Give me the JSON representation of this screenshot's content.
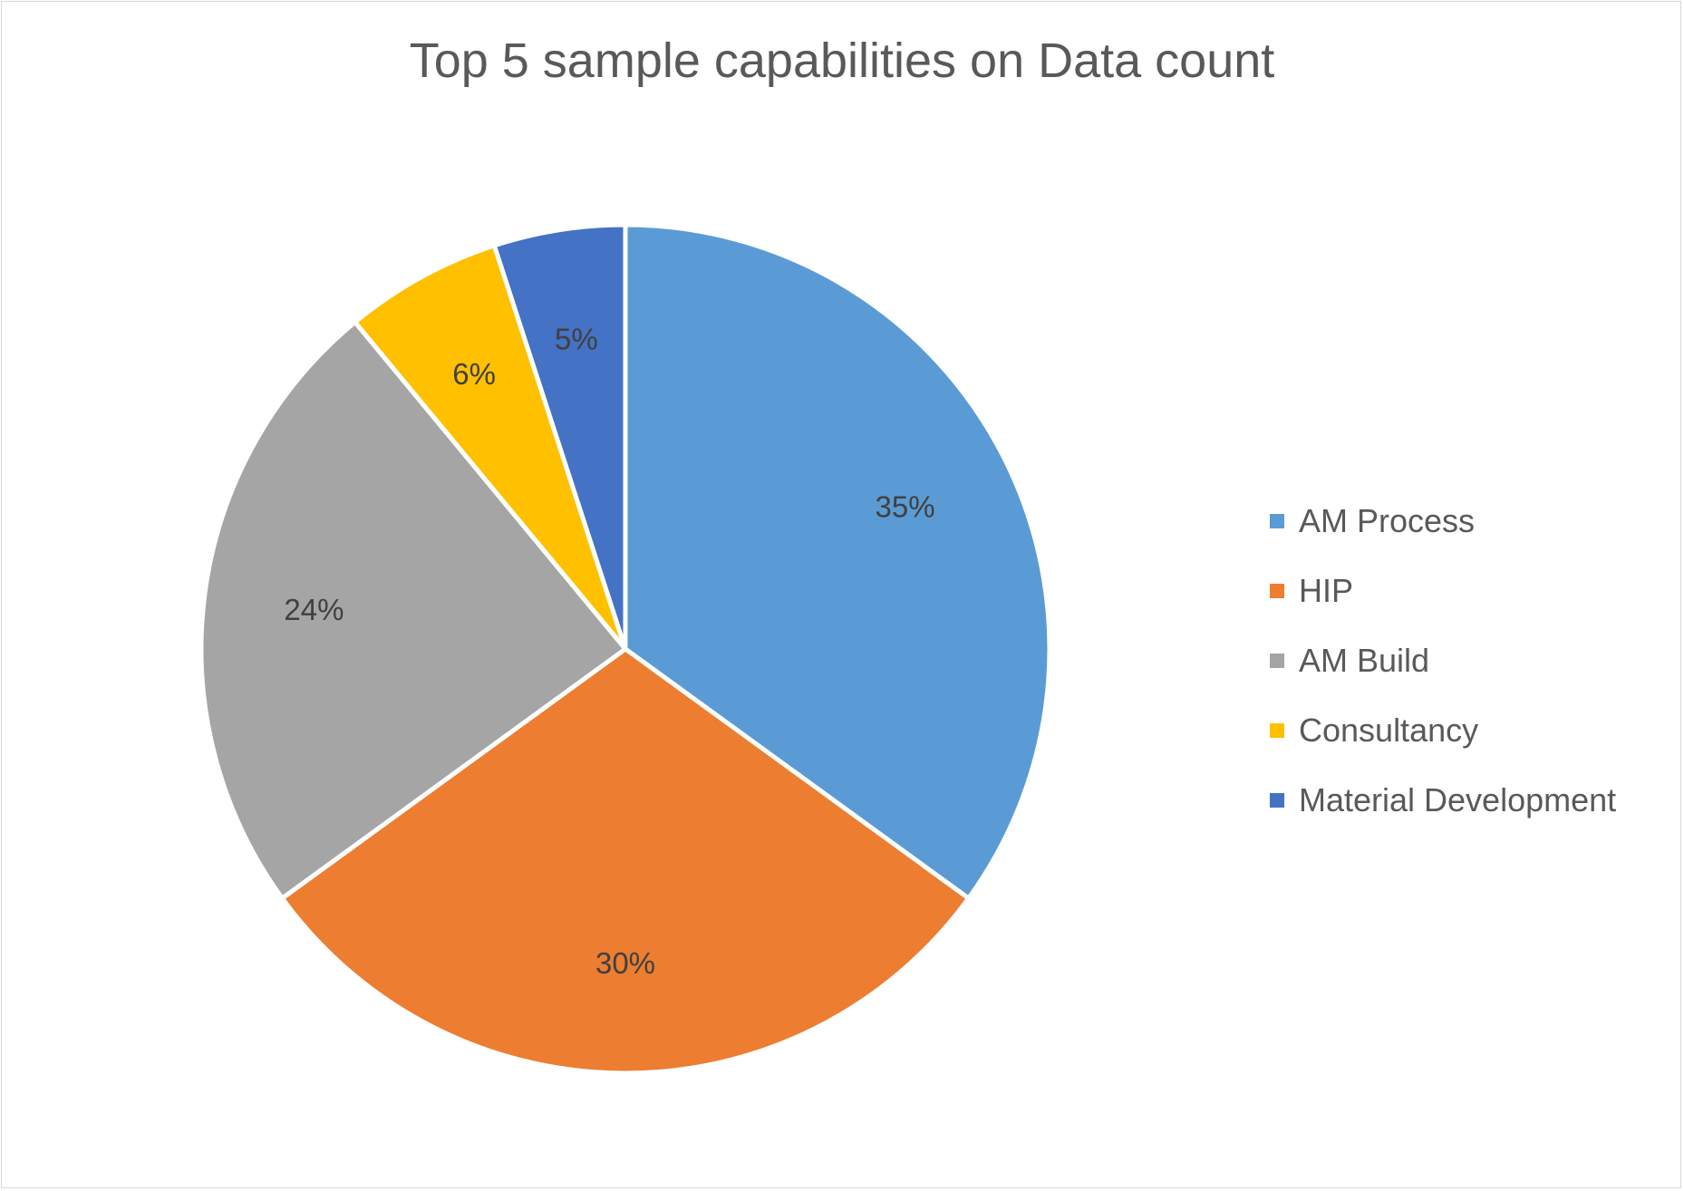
{
  "chart_data": {
    "type": "pie",
    "title": "Top 5 sample capabilities on Data count",
    "categories": [
      "AM Process",
      "HIP",
      "AM Build",
      "Consultancy",
      "Material Development"
    ],
    "values": [
      35,
      30,
      24,
      6,
      5
    ],
    "labels": [
      "35%",
      "30%",
      "24%",
      "6%",
      "5%"
    ],
    "colors": [
      "#5b9bd5",
      "#ed7d31",
      "#a5a5a5",
      "#ffc000",
      "#4472c4"
    ],
    "legend_position": "right",
    "start_angle": "top",
    "direction": "clockwise"
  }
}
